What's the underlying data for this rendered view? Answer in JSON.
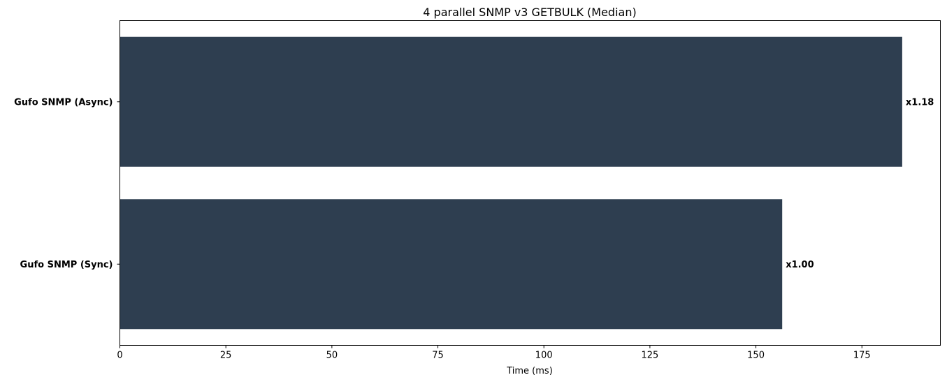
{
  "chart_data": {
    "type": "bar",
    "orientation": "horizontal",
    "title": "4 parallel SNMP v3 GETBULK (Median)",
    "xlabel": "Time (ms)",
    "ylabel": "",
    "categories": [
      "Gufo SNMP (Async)",
      "Gufo SNMP (Sync)"
    ],
    "values": [
      184.5,
      156.2
    ],
    "data_labels": [
      "x1.18",
      "x1.00"
    ],
    "xlim": [
      0,
      193.5
    ],
    "xticks": [
      0,
      25,
      50,
      75,
      100,
      125,
      150,
      175
    ],
    "grid": false,
    "legend": "none",
    "bar_color": "#2e3e50"
  }
}
